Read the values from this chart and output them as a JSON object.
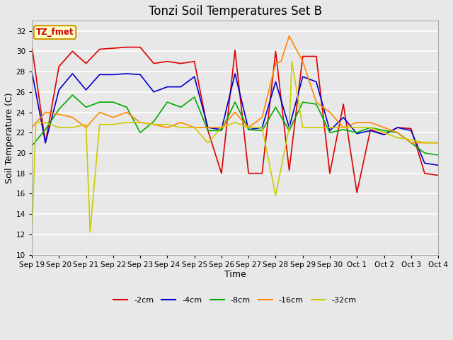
{
  "title": "Tonzi Soil Temperatures Set B",
  "xlabel": "Time",
  "ylabel": "Soil Temperature (C)",
  "ylim": [
    10,
    33
  ],
  "yticks": [
    10,
    12,
    14,
    16,
    18,
    20,
    22,
    24,
    26,
    28,
    30,
    32
  ],
  "x_labels": [
    "Sep 19",
    "Sep 20",
    "Sep 21",
    "Sep 22",
    "Sep 23",
    "Sep 24",
    "Sep 25",
    "Sep 26",
    "Sep 27",
    "Sep 28",
    "Sep 29",
    "Sep 30",
    "Oct 1",
    "Oct 2",
    "Oct 3",
    "Oct 4"
  ],
  "annotation_text": "TZ_fmet",
  "annotation_color": "#cc0000",
  "annotation_bg": "#ffffcc",
  "annotation_border": "#cc9900",
  "series": {
    "neg2cm": {
      "label": "-2cm",
      "color": "#dd0000",
      "x": [
        0,
        0.5,
        1,
        1.5,
        2,
        2.5,
        3,
        3.5,
        4,
        4.5,
        5,
        5.5,
        6,
        6.5,
        7,
        7.5,
        8,
        8.5,
        9,
        9.5,
        10,
        10.5,
        11,
        11.5,
        12,
        12.5,
        13,
        13.5,
        14,
        14.5,
        15
      ],
      "values": [
        30.5,
        21.0,
        28.5,
        30.0,
        28.8,
        30.2,
        30.3,
        30.4,
        30.4,
        28.8,
        29.0,
        28.8,
        29.0,
        22.2,
        18.0,
        30.1,
        18.0,
        18.0,
        30.0,
        18.3,
        29.5,
        29.5,
        18.0,
        24.8,
        16.1,
        22.3,
        21.8,
        22.5,
        22.4,
        18.0,
        17.8
      ]
    },
    "neg4cm": {
      "label": "-4cm",
      "color": "#0000cc",
      "x": [
        0,
        0.5,
        1,
        1.5,
        2,
        2.5,
        3,
        3.5,
        4,
        4.5,
        5,
        5.5,
        6,
        6.5,
        7,
        7.5,
        8,
        8.5,
        9,
        9.5,
        10,
        10.5,
        11,
        11.5,
        12,
        12.5,
        13,
        13.5,
        14,
        14.5,
        15
      ],
      "values": [
        28.0,
        21.0,
        26.2,
        27.8,
        26.2,
        27.7,
        27.7,
        27.8,
        27.7,
        26.0,
        26.5,
        26.5,
        27.5,
        22.5,
        22.3,
        27.8,
        22.3,
        22.5,
        27.0,
        22.5,
        27.5,
        27.0,
        22.2,
        23.5,
        21.9,
        22.2,
        21.8,
        22.5,
        22.2,
        19.0,
        18.8
      ]
    },
    "neg8cm": {
      "label": "-8cm",
      "color": "#00aa00",
      "x": [
        0,
        0.5,
        1,
        1.5,
        2,
        2.5,
        3,
        3.5,
        4,
        4.5,
        5,
        5.5,
        6,
        6.5,
        7,
        7.5,
        8,
        8.5,
        9,
        9.5,
        10,
        10.5,
        11,
        11.5,
        12,
        12.5,
        13,
        13.5,
        14,
        14.5,
        15
      ],
      "values": [
        20.7,
        22.3,
        24.3,
        25.7,
        24.5,
        25.0,
        25.0,
        24.5,
        22.0,
        23.1,
        25.0,
        24.5,
        25.5,
        22.2,
        22.2,
        25.0,
        22.3,
        22.2,
        24.5,
        22.2,
        25.0,
        24.8,
        22.0,
        22.3,
        22.0,
        22.5,
        22.2,
        22.0,
        21.0,
        20.0,
        19.8
      ]
    },
    "neg16cm": {
      "label": "-16cm",
      "color": "#ff8800",
      "x": [
        0,
        0.5,
        1,
        1.5,
        2,
        2.5,
        3,
        3.5,
        4,
        4.5,
        5,
        5.5,
        6,
        6.5,
        7,
        7.5,
        8,
        8.5,
        9,
        9.2,
        9.5,
        10,
        10.5,
        11,
        11.5,
        12,
        12.5,
        13,
        13.5,
        14,
        14.5,
        15
      ],
      "values": [
        22.5,
        24.0,
        23.8,
        23.5,
        22.5,
        24.0,
        23.5,
        24.0,
        23.0,
        22.8,
        22.5,
        23.0,
        22.5,
        22.5,
        22.5,
        24.0,
        22.5,
        23.5,
        28.8,
        29.0,
        31.5,
        29.0,
        25.0,
        24.0,
        22.5,
        23.0,
        23.0,
        22.5,
        22.0,
        21.0,
        21.0,
        21.0
      ]
    },
    "neg32cm": {
      "label": "-32cm",
      "color": "#cccc00",
      "x": [
        0,
        0.15,
        0.5,
        1,
        1.5,
        2,
        2.15,
        2.5,
        3,
        3.5,
        4,
        4.5,
        5,
        5.5,
        6,
        6.5,
        7,
        7.5,
        8,
        8.5,
        9,
        9.5,
        9.6,
        10,
        10.5,
        11,
        11.5,
        12,
        12.5,
        13,
        13.5,
        14,
        14.5,
        15
      ],
      "values": [
        12.0,
        23.0,
        23.0,
        22.5,
        22.5,
        22.8,
        12.2,
        22.8,
        22.8,
        23.0,
        23.0,
        22.8,
        22.8,
        22.5,
        22.5,
        21.0,
        22.5,
        23.0,
        22.5,
        22.5,
        15.8,
        22.5,
        29.0,
        22.5,
        22.5,
        22.5,
        22.5,
        22.5,
        22.5,
        22.0,
        21.5,
        21.3,
        21.0,
        21.0
      ]
    }
  },
  "bg_color": "#e8e8e8",
  "plot_bg_color": "#e8e8e8",
  "grid_color": "#ffffff",
  "title_fontsize": 12,
  "axis_label_fontsize": 9,
  "tick_fontsize": 7.5
}
